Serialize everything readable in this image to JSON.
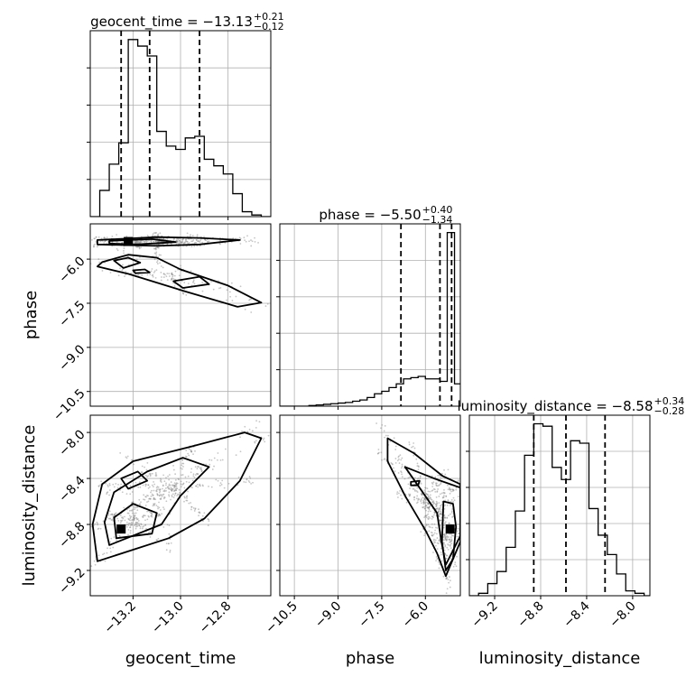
{
  "chart_data": {
    "type": "corner",
    "parameters": [
      "geocent_time",
      "phase",
      "luminosity_distance"
    ],
    "axis_labels": {
      "geocent_time": "geocent_time",
      "phase": "phase",
      "luminosity_distance": "luminosity_distance"
    },
    "ranges": {
      "geocent_time": [
        -13.38,
        -12.62
      ],
      "phase": [
        -11.0,
        -4.8
      ],
      "luminosity_distance": [
        -9.42,
        -7.85
      ]
    },
    "ticks": {
      "geocent_time": [
        -13.2,
        -13.0,
        -12.8
      ],
      "phase": [
        -10.5,
        -9.0,
        -7.5,
        -6.0
      ],
      "luminosity_distance": [
        -9.2,
        -8.8,
        -8.4,
        -8.0
      ]
    },
    "tick_labels": {
      "geocent_time": [
        "−13.2",
        "−13.0",
        "−12.8"
      ],
      "phase": [
        "−10.5",
        "−9.0",
        "−7.5",
        "−6.0"
      ],
      "luminosity_distance": [
        "−9.2",
        "−8.8",
        "−8.4",
        "−8.0"
      ]
    },
    "titles": {
      "geocent_time": {
        "main": "geocent_time = −13.13",
        "plus": "+0.21",
        "minus": "−0.12"
      },
      "phase": {
        "main": "phase = −5.50",
        "plus": "+0.40",
        "minus": "−1.34"
      },
      "luminosity_distance": {
        "main": "luminosity_distance = −8.58",
        "plus": "+0.34",
        "minus": "−0.28"
      }
    },
    "quantiles": {
      "geocent_time": [
        -13.25,
        -13.13,
        -12.92
      ],
      "phase": [
        -6.84,
        -5.5,
        -5.1
      ],
      "luminosity_distance": [
        -8.86,
        -8.58,
        -8.24
      ]
    },
    "histograms": {
      "geocent_time": {
        "edges": [
          -13.38,
          -13.34,
          -13.3,
          -13.26,
          -13.22,
          -13.18,
          -13.14,
          -13.1,
          -13.06,
          -13.02,
          -12.98,
          -12.94,
          -12.9,
          -12.86,
          -12.82,
          -12.78,
          -12.74,
          -12.7,
          -12.66,
          -12.62
        ],
        "counts": [
          0,
          16,
          32,
          45,
          108,
          104,
          98,
          52,
          43,
          41,
          48,
          49,
          35,
          31,
          26,
          14,
          3,
          1,
          0
        ]
      },
      "phase": {
        "edges": [
          -11.0,
          -10.75,
          -10.5,
          -10.25,
          -10.0,
          -9.75,
          -9.5,
          -9.25,
          -9.0,
          -8.75,
          -8.5,
          -8.25,
          -8.0,
          -7.75,
          -7.5,
          -7.25,
          -7.0,
          -6.75,
          -6.5,
          -6.25,
          -6.0,
          -5.75,
          -5.5,
          -5.25,
          -5.0,
          -4.8
        ],
        "counts": [
          0,
          0,
          0,
          0,
          0.5,
          1,
          1.5,
          2,
          2.5,
          3,
          4,
          5,
          7,
          10,
          12,
          15,
          18,
          22,
          23,
          24,
          22,
          22,
          20,
          140,
          18
        ]
      },
      "luminosity_distance": {
        "edges": [
          -9.42,
          -9.34,
          -9.26,
          -9.18,
          -9.1,
          -9.02,
          -8.94,
          -8.86,
          -8.78,
          -8.7,
          -8.62,
          -8.54,
          -8.46,
          -8.38,
          -8.3,
          -8.22,
          -8.14,
          -8.06,
          -7.98,
          -7.9,
          -7.85
        ],
        "counts": [
          0,
          1,
          5,
          10,
          20,
          35,
          58,
          71,
          70,
          53,
          48,
          64,
          63,
          36,
          25,
          17,
          9,
          2,
          1,
          0
        ]
      }
    },
    "contours_2d": {
      "phase_vs_geocent_time": {
        "x": "geocent_time",
        "y": "phase",
        "levels": [
          [
            [
              -13.35,
              -5.35
            ],
            [
              -13.1,
              -5.25
            ],
            [
              -12.92,
              -5.28
            ],
            [
              -12.75,
              -5.35
            ],
            [
              -12.92,
              -5.5
            ],
            [
              -13.1,
              -5.55
            ],
            [
              -13.35,
              -5.5
            ]
          ],
          [
            [
              -13.3,
              -5.38
            ],
            [
              -13.12,
              -5.32
            ],
            [
              -13.02,
              -5.42
            ],
            [
              -13.18,
              -5.5
            ],
            [
              -13.3,
              -5.47
            ]
          ],
          [
            [
              -13.33,
              -6.1
            ],
            [
              -13.22,
              -5.85
            ],
            [
              -13.1,
              -5.95
            ],
            [
              -13.0,
              -6.35
            ],
            [
              -12.8,
              -6.9
            ],
            [
              -12.66,
              -7.48
            ],
            [
              -12.76,
              -7.62
            ],
            [
              -12.98,
              -7.1
            ],
            [
              -13.22,
              -6.5
            ],
            [
              -13.35,
              -6.25
            ]
          ],
          [
            [
              -13.28,
              -6.05
            ],
            [
              -13.22,
              -5.95
            ],
            [
              -13.17,
              -6.12
            ],
            [
              -13.24,
              -6.3
            ]
          ],
          [
            [
              -13.03,
              -6.75
            ],
            [
              -12.92,
              -6.6
            ],
            [
              -12.88,
              -6.85
            ],
            [
              -12.99,
              -6.98
            ]
          ],
          [
            [
              -13.2,
              -6.38
            ],
            [
              -13.15,
              -6.35
            ],
            [
              -13.13,
              -6.45
            ],
            [
              -13.19,
              -6.48
            ]
          ]
        ],
        "peak": [
          -13.22,
          -5.4
        ]
      },
      "luminosity_distance_vs_geocent_time": {
        "x": "geocent_time",
        "y": "luminosity_distance",
        "levels": [
          [
            [
              -13.35,
              -9.12
            ],
            [
              -13.05,
              -8.92
            ],
            [
              -12.9,
              -8.75
            ],
            [
              -12.75,
              -8.42
            ],
            [
              -12.66,
              -8.05
            ],
            [
              -12.73,
              -8.0
            ],
            [
              -12.95,
              -8.12
            ],
            [
              -13.2,
              -8.25
            ],
            [
              -13.33,
              -8.45
            ],
            [
              -13.37,
              -8.8
            ]
          ],
          [
            [
              -13.3,
              -8.98
            ],
            [
              -13.08,
              -8.8
            ],
            [
              -13.0,
              -8.55
            ],
            [
              -12.88,
              -8.3
            ],
            [
              -12.99,
              -8.22
            ],
            [
              -13.14,
              -8.34
            ],
            [
              -13.28,
              -8.52
            ],
            [
              -13.32,
              -8.78
            ]
          ],
          [
            [
              -13.27,
              -8.92
            ],
            [
              -13.12,
              -8.88
            ],
            [
              -13.1,
              -8.7
            ],
            [
              -13.2,
              -8.62
            ],
            [
              -13.28,
              -8.74
            ]
          ],
          [
            [
              -13.25,
              -8.4
            ],
            [
              -13.18,
              -8.34
            ],
            [
              -13.14,
              -8.42
            ],
            [
              -13.22,
              -8.49
            ]
          ]
        ],
        "peak": [
          -13.25,
          -8.84
        ]
      },
      "luminosity_distance_vs_phase": {
        "x": "phase",
        "y": "luminosity_distance",
        "levels": [
          [
            [
              -7.3,
              -8.05
            ],
            [
              -6.4,
              -8.18
            ],
            [
              -5.4,
              -8.38
            ],
            [
              -4.8,
              -8.45
            ],
            [
              -4.8,
              -8.95
            ],
            [
              -5.3,
              -9.25
            ],
            [
              -5.6,
              -9.05
            ],
            [
              -6.0,
              -8.85
            ],
            [
              -6.7,
              -8.55
            ],
            [
              -7.3,
              -8.25
            ]
          ],
          [
            [
              -6.7,
              -8.3
            ],
            [
              -5.7,
              -8.4
            ],
            [
              -4.8,
              -8.48
            ],
            [
              -4.8,
              -8.9
            ],
            [
              -5.3,
              -9.15
            ],
            [
              -5.45,
              -8.95
            ],
            [
              -5.6,
              -8.7
            ],
            [
              -6.2,
              -8.48
            ]
          ],
          [
            [
              -5.38,
              -8.6
            ],
            [
              -5.05,
              -8.62
            ],
            [
              -4.95,
              -8.82
            ],
            [
              -5.05,
              -9.1
            ],
            [
              -5.3,
              -9.2
            ],
            [
              -5.43,
              -8.95
            ]
          ],
          [
            [
              -6.5,
              -8.43
            ],
            [
              -6.2,
              -8.42
            ],
            [
              -6.25,
              -8.46
            ],
            [
              -6.5,
              -8.46
            ]
          ]
        ],
        "peak": [
          -5.15,
          -8.84
        ]
      }
    },
    "grid": true
  }
}
